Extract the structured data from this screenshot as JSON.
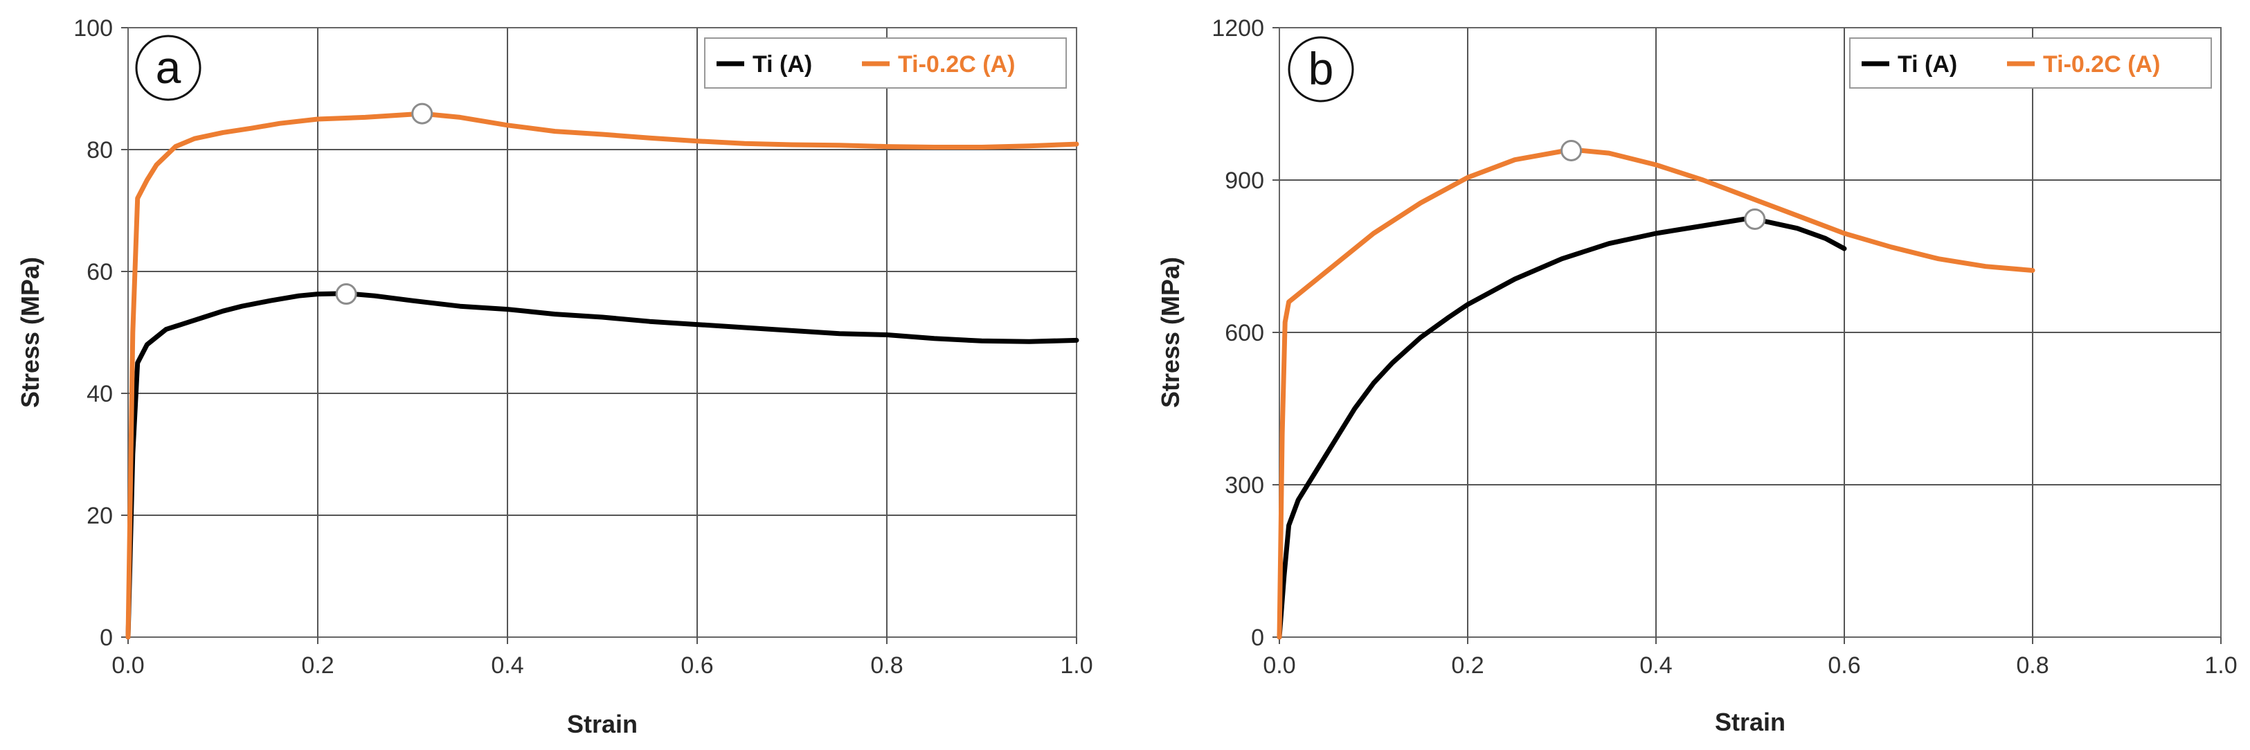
{
  "chart_data": [
    {
      "type": "line",
      "panel_label": "a",
      "xlabel": "Strain",
      "ylabel": "Stress (MPa)",
      "xlim": [
        0,
        1.0
      ],
      "ylim": [
        0,
        100
      ],
      "xticks": [
        "0.0",
        "0.2",
        "0.4",
        "0.6",
        "0.8",
        "1.0"
      ],
      "yticks": [
        "0",
        "20",
        "40",
        "60",
        "80",
        "100"
      ],
      "grid": true,
      "legend_position": "top-right",
      "series": [
        {
          "name": "Ti (A)",
          "color": "#000000",
          "x": [
            0,
            0.005,
            0.01,
            0.02,
            0.04,
            0.06,
            0.08,
            0.1,
            0.12,
            0.15,
            0.18,
            0.2,
            0.23,
            0.26,
            0.3,
            0.35,
            0.4,
            0.45,
            0.5,
            0.55,
            0.6,
            0.65,
            0.7,
            0.75,
            0.8,
            0.85,
            0.9,
            0.95,
            1.0
          ],
          "y": [
            0,
            30,
            45,
            48,
            50.5,
            51.5,
            52.5,
            53.5,
            54.3,
            55.2,
            56.0,
            56.3,
            56.4,
            56.0,
            55.2,
            54.3,
            53.8,
            53.0,
            52.5,
            51.8,
            51.3,
            50.8,
            50.3,
            49.8,
            49.6,
            49.0,
            48.6,
            48.5,
            48.7
          ],
          "marker_point": {
            "x": 0.23,
            "y": 56.3
          }
        },
        {
          "name": "Ti-0.2C (A)",
          "color": "#ED7D31",
          "x": [
            0,
            0.005,
            0.01,
            0.02,
            0.03,
            0.05,
            0.07,
            0.1,
            0.13,
            0.16,
            0.2,
            0.25,
            0.31,
            0.35,
            0.4,
            0.45,
            0.5,
            0.55,
            0.6,
            0.65,
            0.7,
            0.75,
            0.8,
            0.85,
            0.9,
            0.95,
            1.0
          ],
          "y": [
            0,
            50,
            72,
            75,
            77.5,
            80.5,
            81.8,
            82.8,
            83.5,
            84.3,
            85.0,
            85.3,
            85.9,
            85.3,
            84.0,
            83.0,
            82.5,
            81.9,
            81.4,
            81.0,
            80.8,
            80.7,
            80.5,
            80.4,
            80.4,
            80.6,
            80.9
          ],
          "marker_point": {
            "x": 0.31,
            "y": 85.9
          }
        }
      ]
    },
    {
      "type": "line",
      "panel_label": "b",
      "xlabel": "Strain",
      "ylabel": "Stress (MPa)",
      "xlim": [
        0,
        1.0
      ],
      "ylim": [
        0,
        1200
      ],
      "xticks": [
        "0.0",
        "0.2",
        "0.4",
        "0.6",
        "0.8",
        "1.0"
      ],
      "yticks": [
        "0",
        "300",
        "600",
        "900",
        "1200"
      ],
      "grid": true,
      "legend_position": "top-right",
      "series": [
        {
          "name": "Ti (A)",
          "color": "#000000",
          "x": [
            0,
            0.005,
            0.01,
            0.02,
            0.03,
            0.05,
            0.08,
            0.1,
            0.12,
            0.15,
            0.18,
            0.2,
            0.25,
            0.3,
            0.35,
            0.4,
            0.45,
            0.5,
            0.55,
            0.58,
            0.6
          ],
          "y": [
            0,
            120,
            220,
            270,
            300,
            360,
            450,
            500,
            540,
            590,
            630,
            655,
            705,
            745,
            775,
            795,
            810,
            825,
            805,
            785,
            765
          ],
          "marker_point": {
            "x": 0.505,
            "y": 823
          }
        },
        {
          "name": "Ti-0.2C (A)",
          "color": "#ED7D31",
          "x": [
            0,
            0.003,
            0.006,
            0.01,
            0.03,
            0.05,
            0.08,
            0.1,
            0.15,
            0.2,
            0.25,
            0.31,
            0.35,
            0.4,
            0.45,
            0.5,
            0.55,
            0.6,
            0.65,
            0.7,
            0.75,
            0.8
          ],
          "y": [
            0,
            400,
            620,
            660,
            690,
            720,
            765,
            795,
            855,
            905,
            940,
            960,
            953,
            930,
            900,
            865,
            830,
            795,
            768,
            745,
            730,
            722
          ],
          "marker_point": {
            "x": 0.31,
            "y": 958
          }
        }
      ]
    }
  ]
}
